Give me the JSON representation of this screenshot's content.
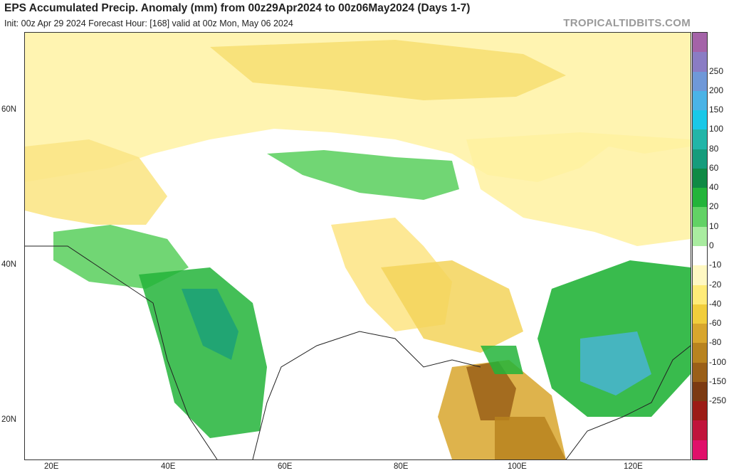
{
  "header": {
    "title": "EPS Accumulated Precip. Anomaly (mm) from 00z29Apr2024 to 00z06May2024 (Days 1-7)",
    "subtitle": "Init: 00z Apr 29 2024   Forecast Hour: [168]   valid at 00z Mon, May 06 2024",
    "site": "TROPICALTIDBITS.COM"
  },
  "axes": {
    "lat_labels": [
      "60N",
      "40N",
      "20N"
    ],
    "lon_labels": [
      "20E",
      "40E",
      "60E",
      "80E",
      "100E",
      "120E"
    ]
  },
  "colorbar": {
    "labels": [
      "250",
      "200",
      "150",
      "100",
      "80",
      "60",
      "40",
      "20",
      "10",
      "0",
      "-10",
      "-20",
      "-40",
      "-60",
      "-80",
      "-100",
      "-150",
      "-250"
    ],
    "colors": [
      "#a463a8",
      "#8a7cc4",
      "#6f98d8",
      "#4bb3e6",
      "#19c8e8",
      "#22b5a8",
      "#159c7c",
      "#0f8a45",
      "#23b43a",
      "#62d265",
      "#a9eca0",
      "#ffffff",
      "#fff8c2",
      "#ffeb78",
      "#f1cd3c",
      "#d8a62d",
      "#b8831f",
      "#9a5f18",
      "#7c3a12",
      "#9c1c16",
      "#c0143b",
      "#e00f6a"
    ]
  }
}
